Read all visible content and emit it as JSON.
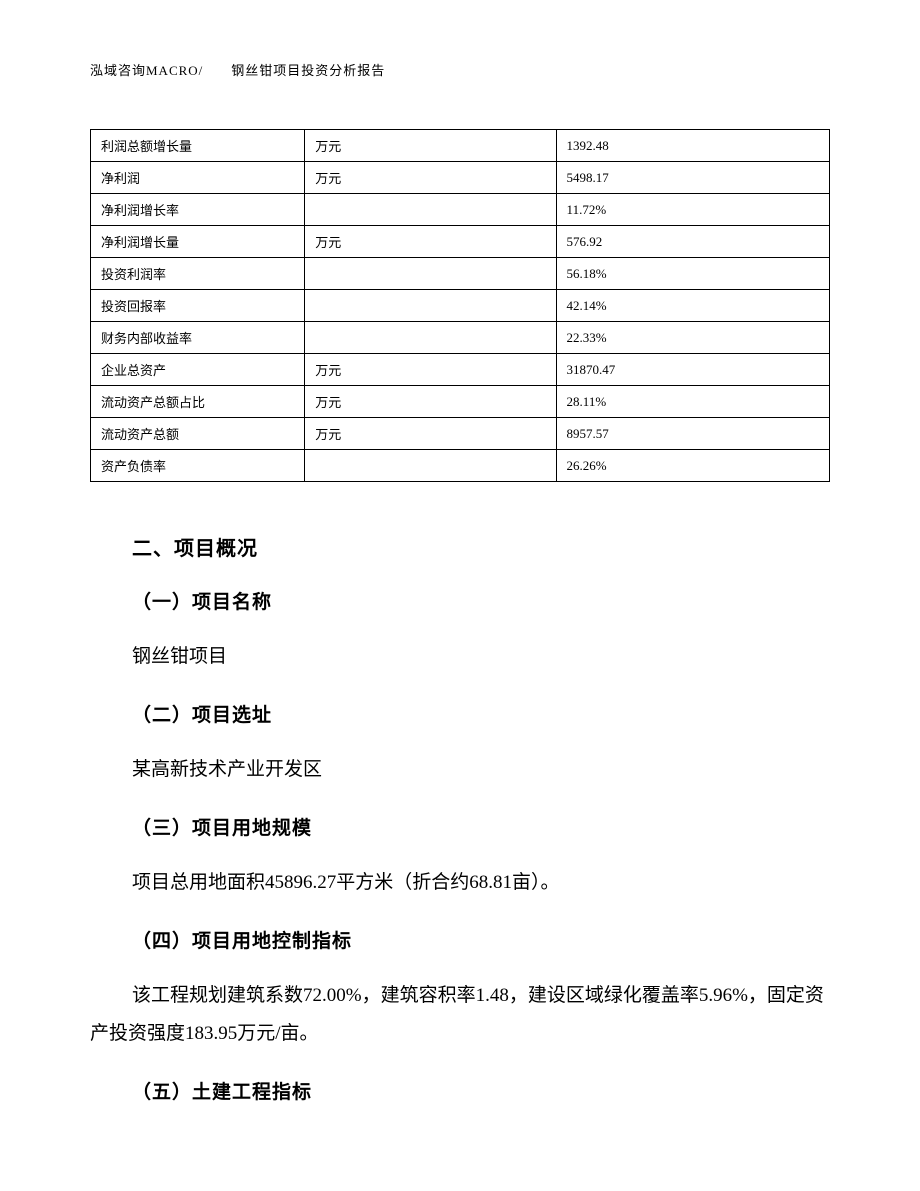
{
  "header": {
    "text": "泓域咨询MACRO/　　钢丝钳项目投资分析报告"
  },
  "table": {
    "columns": {
      "col1_width": "29%",
      "col2_width": "34%",
      "col3_width": "37%"
    },
    "rows": [
      {
        "label": "利润总额增长量",
        "unit": "万元",
        "value": "1392.48"
      },
      {
        "label": "净利润",
        "unit": "万元",
        "value": "5498.17"
      },
      {
        "label": "净利润增长率",
        "unit": "",
        "value": "11.72%"
      },
      {
        "label": "净利润增长量",
        "unit": "万元",
        "value": "576.92"
      },
      {
        "label": "投资利润率",
        "unit": "",
        "value": "56.18%"
      },
      {
        "label": "投资回报率",
        "unit": "",
        "value": "42.14%"
      },
      {
        "label": "财务内部收益率",
        "unit": "",
        "value": "22.33%"
      },
      {
        "label": "企业总资产",
        "unit": "万元",
        "value": "31870.47"
      },
      {
        "label": "流动资产总额占比",
        "unit": "万元",
        "value": "28.11%"
      },
      {
        "label": "流动资产总额",
        "unit": "万元",
        "value": "8957.57"
      },
      {
        "label": "资产负债率",
        "unit": "",
        "value": "26.26%"
      }
    ]
  },
  "sections": {
    "main_title": "二、项目概况",
    "items": [
      {
        "title": "（一）项目名称",
        "body": "钢丝钳项目",
        "wrap": false
      },
      {
        "title": "（二）项目选址",
        "body": "某高新技术产业开发区",
        "wrap": false
      },
      {
        "title": "（三）项目用地规模",
        "body": "项目总用地面积45896.27平方米（折合约68.81亩）。",
        "wrap": false
      },
      {
        "title": "（四）项目用地控制指标",
        "body": "该工程规划建筑系数72.00%，建筑容积率1.48，建设区域绿化覆盖率5.96%，固定资产投资强度183.95万元/亩。",
        "wrap": true
      },
      {
        "title": "（五）土建工程指标",
        "body": "",
        "wrap": false
      }
    ]
  },
  "style": {
    "page_bg": "#ffffff",
    "text_color": "#000000",
    "border_color": "#000000",
    "table_fontsize": 13,
    "heading_fontsize": 20,
    "subheading_fontsize": 19,
    "body_fontsize": 19,
    "header_fontsize": 13,
    "heading_font": "SimHei",
    "body_font": "SimSun"
  }
}
